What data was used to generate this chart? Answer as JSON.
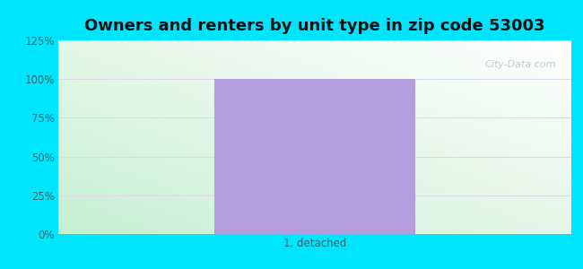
{
  "title": "Owners and renters by unit type in zip code 53003",
  "categories": [
    "1, detached"
  ],
  "values": [
    100
  ],
  "bar_color": "#b39ddb",
  "bar_width": 0.55,
  "ylim": [
    0,
    125
  ],
  "yticks": [
    0,
    25,
    50,
    75,
    100,
    125
  ],
  "ytick_labels": [
    "0%",
    "25%",
    "50%",
    "75%",
    "100%",
    "125%"
  ],
  "background_color": "#00e5ff",
  "grid_color": "#e0d8ee",
  "title_fontsize": 13,
  "tick_fontsize": 8.5,
  "tick_color": "#336666",
  "watermark": "City-Data.com"
}
